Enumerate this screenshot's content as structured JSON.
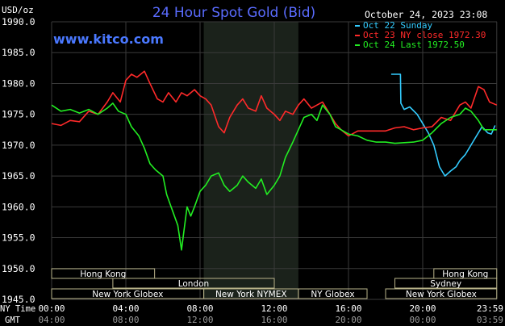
{
  "chart_data": {
    "type": "line",
    "title": "24 Hour Spot Gold (Bid)",
    "timestamp": "October 24, 2023 23:08",
    "website": "www.kitco.com",
    "ylabel": "USD/oz",
    "ylim": [
      1945.0,
      1990.0
    ],
    "yticks": [
      "1990.0",
      "1985.0",
      "1980.0",
      "1975.0",
      "1970.0",
      "1965.0",
      "1960.0",
      "1955.0",
      "1950.0",
      "1945.0"
    ],
    "x_row1_label": "NY Time",
    "x_row2_label": "GMT",
    "xticks_ny": [
      "00:00",
      "04:00",
      "08:00",
      "12:00",
      "16:00",
      "20:00",
      "23:59"
    ],
    "xticks_gmt": [
      "04:00",
      "08:00",
      "12:00",
      "16:00",
      "20:00",
      "00:00",
      "03:59"
    ],
    "grid": true,
    "legend_position": "top-right",
    "colors": {
      "background": "#000000",
      "grid": "#3a3a3a",
      "title": "#5a6cff",
      "website": "#4a78ff",
      "axis_text": "#ffffff",
      "gmt_text": "#9a9a9a",
      "shade": "#1b221b",
      "session_box": "#b9b38a"
    },
    "series": [
      {
        "name": "Oct 22 Sunday",
        "color": "#33ccff",
        "x": [
          18.3,
          18.8,
          18.82,
          19.0,
          19.3,
          19.7,
          20.0,
          20.3,
          20.6,
          20.9,
          21.2,
          21.5,
          21.8,
          22.0,
          22.3,
          22.6,
          22.9,
          23.2,
          23.5,
          23.7,
          23.9
        ],
        "y": [
          1981.5,
          1981.5,
          1976.8,
          1975.8,
          1976.2,
          1975.0,
          1973.5,
          1972.0,
          1970.0,
          1966.5,
          1965.0,
          1965.8,
          1966.5,
          1967.5,
          1968.5,
          1970.0,
          1971.5,
          1973.0,
          1972.0,
          1971.8,
          1973.2
        ]
      },
      {
        "name": "Oct 23 NY close 1972.30",
        "color": "#ff2a2a",
        "x": [
          0,
          0.5,
          1.0,
          1.5,
          2.0,
          2.5,
          3.0,
          3.3,
          3.7,
          4.0,
          4.3,
          4.6,
          5.0,
          5.3,
          5.7,
          6.0,
          6.3,
          6.7,
          7.0,
          7.3,
          7.7,
          8.0,
          8.3,
          8.6,
          9.0,
          9.3,
          9.6,
          10.0,
          10.3,
          10.6,
          11.0,
          11.3,
          11.6,
          12.0,
          12.3,
          12.6,
          13.0,
          13.3,
          13.6,
          14.0,
          14.3,
          14.6,
          15.0,
          15.3,
          15.6,
          16.0,
          16.5,
          17.0,
          17.5,
          18.0,
          18.5,
          19.0,
          19.5,
          20.0,
          20.5,
          21.0,
          21.5,
          22.0,
          22.3,
          22.6,
          23.0,
          23.3,
          23.6,
          23.99
        ],
        "y": [
          1973.5,
          1973.2,
          1974.0,
          1973.8,
          1975.5,
          1975.0,
          1977.0,
          1978.5,
          1977.0,
          1980.5,
          1981.5,
          1981.0,
          1982.0,
          1980.0,
          1977.5,
          1977.0,
          1978.5,
          1977.0,
          1978.5,
          1978.0,
          1979.0,
          1978.0,
          1977.5,
          1976.5,
          1973.0,
          1972.0,
          1974.5,
          1976.5,
          1977.5,
          1976.0,
          1975.5,
          1978.0,
          1976.0,
          1975.0,
          1974.0,
          1975.5,
          1975.0,
          1976.5,
          1977.5,
          1976.0,
          1976.5,
          1977.0,
          1975.0,
          1973.5,
          1972.5,
          1971.5,
          1972.3,
          1972.3,
          1972.3,
          1972.3,
          1972.8,
          1973.0,
          1972.5,
          1972.8,
          1973.0,
          1974.5,
          1974.0,
          1976.5,
          1977.0,
          1976.0,
          1979.5,
          1979.0,
          1977.0,
          1976.5
        ]
      },
      {
        "name": "Oct 24 Last 1972.50",
        "color": "#22ee22",
        "x": [
          0,
          0.5,
          1.0,
          1.5,
          2.0,
          2.5,
          3.0,
          3.3,
          3.6,
          4.0,
          4.3,
          4.7,
          5.0,
          5.3,
          5.6,
          6.0,
          6.2,
          6.5,
          6.8,
          7.0,
          7.15,
          7.3,
          7.5,
          7.7,
          8.0,
          8.3,
          8.6,
          9.0,
          9.3,
          9.6,
          10.0,
          10.3,
          10.6,
          11.0,
          11.3,
          11.6,
          12.0,
          12.3,
          12.6,
          13.0,
          13.3,
          13.6,
          14.0,
          14.3,
          14.6,
          15.0,
          15.3,
          15.6,
          16.0,
          16.5,
          17.0,
          17.5,
          18.0,
          18.5,
          19.0,
          19.5,
          20.0,
          20.5,
          21.0,
          21.5,
          22.0,
          22.3,
          22.6,
          23.0,
          23.3,
          23.6,
          23.99
        ],
        "y": [
          1976.5,
          1975.5,
          1975.8,
          1975.2,
          1975.8,
          1975.0,
          1976.0,
          1976.8,
          1975.5,
          1975.0,
          1973.0,
          1971.5,
          1969.5,
          1967.0,
          1966.0,
          1965.0,
          1962.0,
          1959.5,
          1957.0,
          1953.0,
          1956.5,
          1960.0,
          1958.5,
          1960.0,
          1962.5,
          1963.5,
          1965.0,
          1965.5,
          1963.5,
          1962.5,
          1963.5,
          1965.0,
          1964.0,
          1963.0,
          1964.5,
          1962.0,
          1963.5,
          1965.0,
          1968.0,
          1970.5,
          1972.5,
          1974.5,
          1975.0,
          1974.0,
          1976.5,
          1975.0,
          1973.0,
          1972.5,
          1971.8,
          1971.5,
          1970.8,
          1970.5,
          1970.5,
          1970.3,
          1970.4,
          1970.5,
          1970.8,
          1972.0,
          1973.5,
          1974.5,
          1975.0,
          1976.0,
          1975.5,
          1974.0,
          1972.5,
          1972.5,
          1972.5
        ]
      }
    ],
    "sessions": [
      {
        "label": "Hong Kong",
        "row": 0,
        "start": 0,
        "end": 5.55
      },
      {
        "label": "Hong Kong",
        "row": 0,
        "start": 20.6,
        "end": 23.99
      },
      {
        "label": "London",
        "row": 1,
        "start": 3.3,
        "end": 12.0
      },
      {
        "label": "Sydney",
        "row": 1,
        "start": 18.5,
        "end": 23.99
      },
      {
        "label": "New York Globex",
        "row": 2,
        "start": 0,
        "end": 8.2
      },
      {
        "label": "New York NYMEX",
        "row": 2,
        "start": 8.2,
        "end": 13.3
      },
      {
        "label": "NY Globex",
        "row": 2,
        "start": 13.3,
        "end": 17.0
      },
      {
        "label": "New York Globex",
        "row": 2,
        "start": 18.0,
        "end": 23.99
      }
    ],
    "shaded_range": [
      8.2,
      13.3
    ]
  }
}
